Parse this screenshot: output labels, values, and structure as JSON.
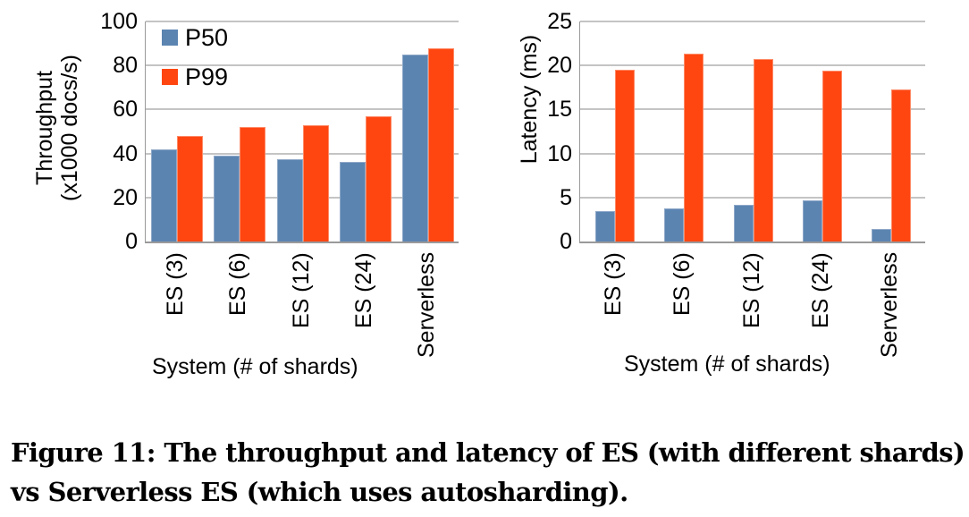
{
  "chart_data": [
    {
      "type": "bar",
      "title": "",
      "categories": [
        "ES (3)",
        "ES (6)",
        "ES (12)",
        "ES (24)",
        "Serverless"
      ],
      "series": [
        {
          "name": "P50",
          "color": "#5b84b1",
          "values": [
            42,
            39,
            37.5,
            36,
            85
          ]
        },
        {
          "name": "P99",
          "color": "#ff4611",
          "values": [
            48,
            52,
            53,
            57,
            88
          ]
        }
      ],
      "xlabel": "System (# of shards)",
      "ylabel": "Throughput (x1000 docs/s)",
      "ylabel_lines": [
        "Throughput",
        "(x1000 docs/s)"
      ],
      "ylim": [
        0,
        100
      ],
      "yticks": [
        "0",
        "20",
        "40",
        "60",
        "80",
        "100"
      ],
      "grid": true,
      "legend_position": "upper-left inside"
    },
    {
      "type": "bar",
      "title": "",
      "categories": [
        "ES (3)",
        "ES (6)",
        "ES (12)",
        "ES (24)",
        "Serverless"
      ],
      "series": [
        {
          "name": "P50",
          "color": "#5b84b1",
          "values": [
            3.5,
            3.8,
            4.2,
            4.7,
            1.4
          ]
        },
        {
          "name": "P99",
          "color": "#ff4611",
          "values": [
            19.5,
            21.3,
            20.7,
            19.4,
            17.3
          ]
        }
      ],
      "xlabel": "System (# of shards)",
      "ylabel": "Latency (ms)",
      "ylim": [
        0,
        25
      ],
      "yticks": [
        "0",
        "5",
        "10",
        "15",
        "20",
        "25"
      ],
      "grid": true,
      "legend_position": "none"
    }
  ],
  "legend": [
    {
      "label": "P50",
      "color": "#5b84b1"
    },
    {
      "label": "P99",
      "color": "#ff4611"
    }
  ],
  "caption": "Figure 11: The throughput and latency of ES (with different shards) vs Serverless ES (which uses autosharding)."
}
